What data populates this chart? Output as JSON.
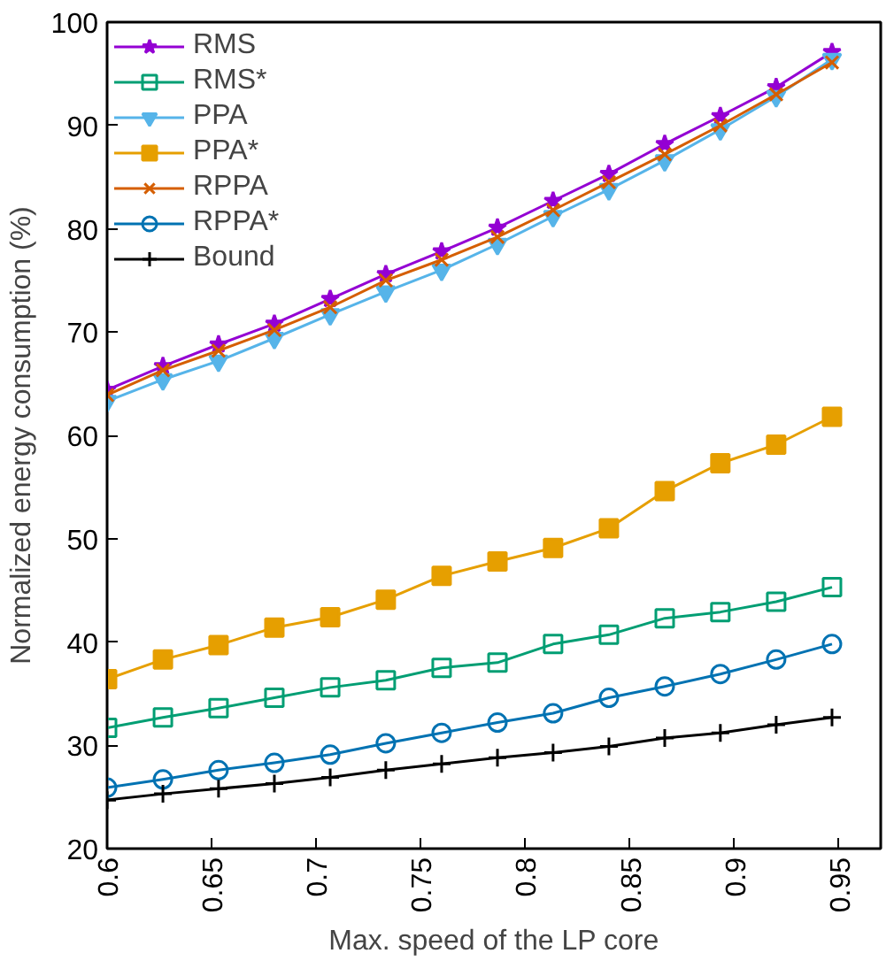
{
  "chart_data": {
    "type": "line",
    "xlabel": "Max. speed of the LP core",
    "ylabel": "Normalized energy consumption (%)",
    "x": [
      0.6,
      0.6267,
      0.6533,
      0.68,
      0.7067,
      0.7333,
      0.76,
      0.7867,
      0.8133,
      0.84,
      0.8667,
      0.8933,
      0.92,
      0.9467
    ],
    "series": [
      {
        "name": "RMS",
        "color": "#9400d3",
        "marker": "star",
        "values": [
          64.4,
          66.7,
          68.8,
          70.8,
          73.2,
          75.6,
          77.8,
          80.1,
          82.7,
          85.3,
          88.2,
          90.9,
          93.7,
          97.1
        ]
      },
      {
        "name": "RMS*",
        "color": "#009e73",
        "marker": "square_open",
        "values": [
          31.7,
          32.7,
          33.6,
          34.6,
          35.6,
          36.3,
          37.5,
          38.0,
          39.8,
          40.7,
          42.3,
          42.9,
          43.9,
          45.3
        ]
      },
      {
        "name": "PPA",
        "color": "#56b4e9",
        "marker": "triangle_down",
        "values": [
          63.3,
          65.4,
          67.2,
          69.4,
          71.7,
          73.9,
          76.0,
          78.5,
          81.2,
          83.8,
          86.6,
          89.6,
          92.8,
          96.4
        ]
      },
      {
        "name": "PPA*",
        "color": "#e69f00",
        "marker": "square",
        "values": [
          36.4,
          38.3,
          39.7,
          41.4,
          42.4,
          44.1,
          46.4,
          47.8,
          49.1,
          51.0,
          54.6,
          57.3,
          59.1,
          61.8
        ]
      },
      {
        "name": "RPPA",
        "color": "#d55e00",
        "marker": "x",
        "values": [
          63.9,
          66.3,
          68.2,
          70.2,
          72.4,
          75.0,
          77.0,
          79.2,
          81.8,
          84.5,
          87.2,
          90.0,
          93.0,
          96.1
        ]
      },
      {
        "name": "RPPA*",
        "color": "#0072b2",
        "marker": "circle_open",
        "values": [
          25.9,
          26.7,
          27.6,
          28.3,
          29.1,
          30.2,
          31.2,
          32.2,
          33.1,
          34.6,
          35.7,
          36.9,
          38.3,
          39.8
        ]
      },
      {
        "name": "Bound",
        "color": "#000000",
        "marker": "cross",
        "values": [
          24.7,
          25.3,
          25.8,
          26.3,
          26.9,
          27.6,
          28.2,
          28.8,
          29.3,
          29.9,
          30.7,
          31.2,
          32.0,
          32.7
        ]
      }
    ],
    "xlim": [
      0.6,
      0.97
    ],
    "xticks": [
      0.6,
      0.65,
      0.7,
      0.75,
      0.8,
      0.85,
      0.9,
      0.95
    ],
    "ylim": [
      20,
      100
    ],
    "yticks": [
      20,
      30,
      40,
      50,
      60,
      70,
      80,
      90,
      100
    ],
    "grid": false,
    "legend": "top left"
  }
}
